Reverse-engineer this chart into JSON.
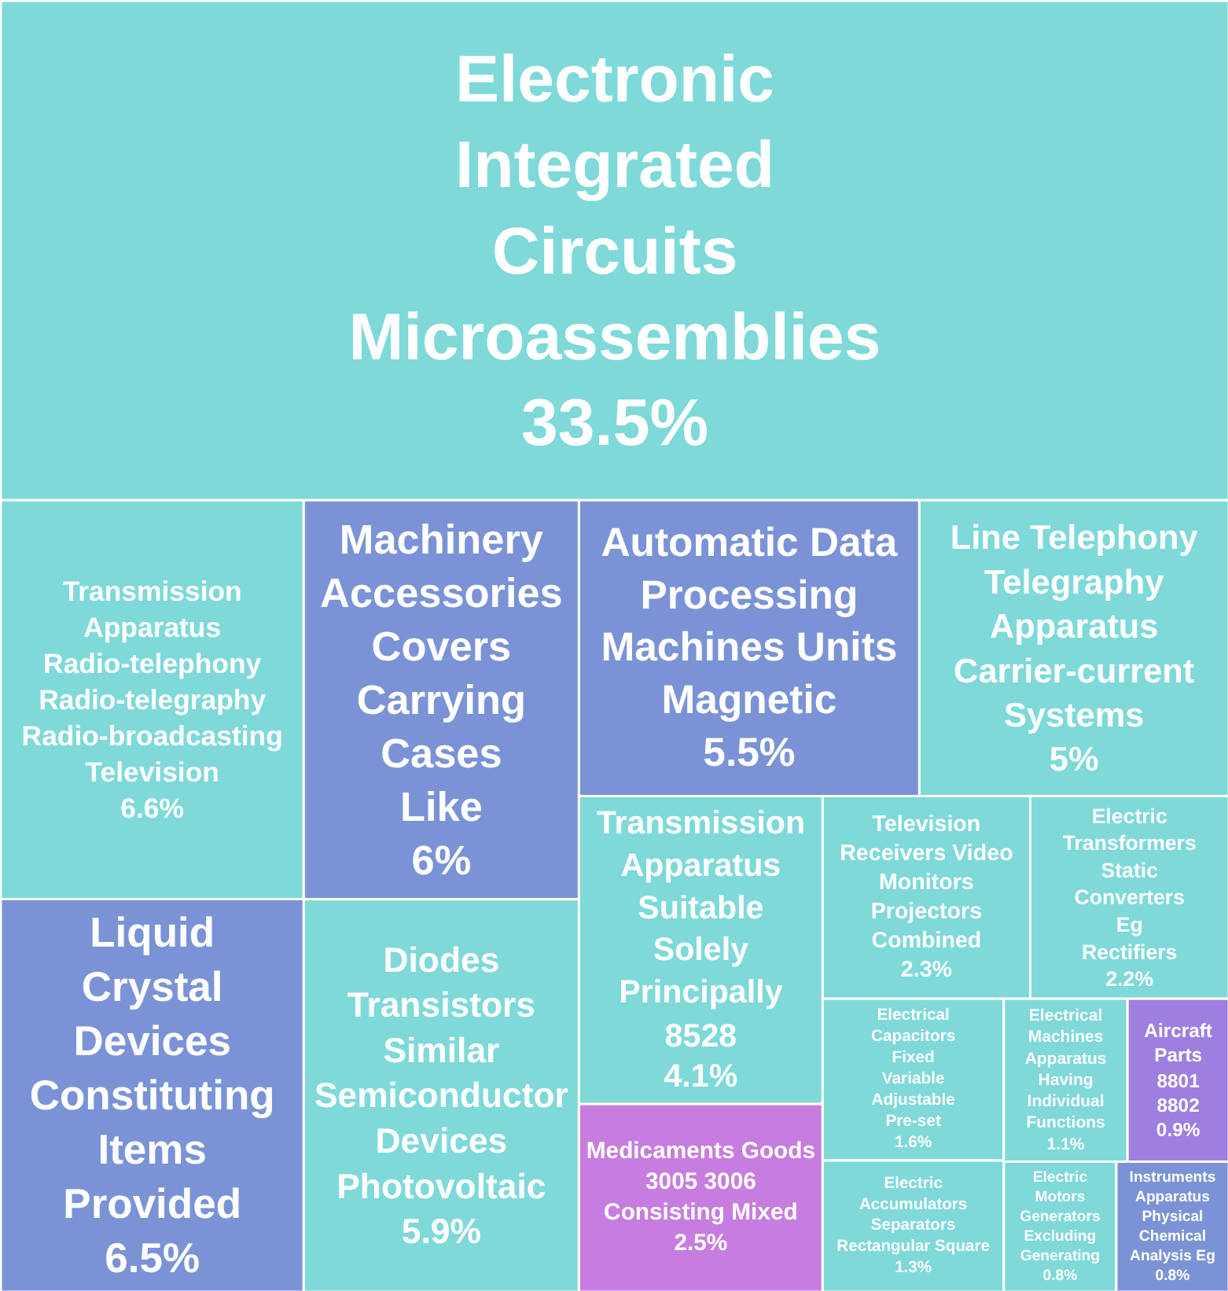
{
  "chart_data": {
    "type": "other",
    "categories": [
      "Electronic Integrated Circuits Microassemblies",
      "Transmission Apparatus Radio-telephony Radio-telegraphy Radio-broadcasting Television",
      "Liquid Crystal Devices Constituting Items Provided",
      "Machinery Accessories Covers Carrying Cases Like",
      "Diodes Transistors Similar Semiconductor Devices Photovoltaic",
      "Automatic Data Processing Machines Units Magnetic",
      "Line Telephony Telegraphy Apparatus Carrier-current Systems",
      "Transmission Apparatus Suitable Solely Principally 8528",
      "Medicaments Goods 3005 3006 Consisting Mixed",
      "Television Receivers Video Monitors Projectors Combined",
      "Electric Transformers Static Converters Eg Rectifiers",
      "Electrical Capacitors Fixed Variable Adjustable Pre-set",
      "Electric Accumulators Separators Rectangular Square",
      "Electrical Machines Apparatus Having Individual Functions",
      "Aircraft Parts 8801 8802",
      "Electric Motors Generators Excluding Generating",
      "Instruments Apparatus Physical Chemical Analysis Eg"
    ],
    "values": [
      33.5,
      6.6,
      6.5,
      6,
      5.9,
      5.5,
      5,
      4.1,
      2.5,
      2.3,
      2.2,
      1.6,
      1.3,
      1.1,
      0.9,
      0.8,
      0.8
    ],
    "value_labels": [
      "33.5%",
      "6.6%",
      "6.5%",
      "6%",
      "5.9%",
      "5.5%",
      "5%",
      "4.1%",
      "2.5%",
      "2.3%",
      "2.2%",
      "1.6%",
      "1.3%",
      "1.1%",
      "0.9%",
      "0.8%",
      "0.8%"
    ],
    "colors": [
      "#7fd9d9",
      "#7fd9d9",
      "#7b93d6",
      "#7b93d6",
      "#7fd9d9",
      "#7b93d6",
      "#7fd9d9",
      "#7fd9d9",
      "#c77ddf",
      "#7fd9d9",
      "#7fd9d9",
      "#7fd9d9",
      "#7fd9d9",
      "#7fd9d9",
      "#9d7fe0",
      "#7fd9d9",
      "#7b93d6"
    ]
  }
}
